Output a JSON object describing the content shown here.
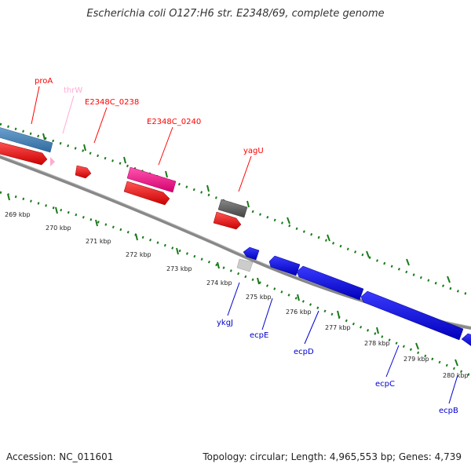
{
  "title": "Escherichia coli O127:H6 str. E2348/69, complete genome",
  "accession": "Accession: NC_011601",
  "summary": "Topology: circular; Length: 4,965,553 bp; Genes: 4,739",
  "kbp_labels": [
    "269 kbp",
    "270 kbp",
    "271 kbp",
    "272 kbp",
    "273 kbp",
    "274 kbp",
    "275 kbp",
    "276 kbp",
    "277 kbp",
    "278 kbp",
    "279 kbp",
    "280 kbp"
  ],
  "genes": {
    "proA": "proA",
    "thrW": "thrW",
    "e0238": "E2348C_0238",
    "e0240": "E2348C_0240",
    "yagU": "yagU",
    "ykgJ": "ykgJ",
    "ecpE": "ecpE",
    "ecpD": "ecpD",
    "ecpC": "ecpC",
    "ecpB": "ecpB"
  },
  "colors": {
    "forward_cds": "#ff0000",
    "reverse_cds": "#0000ff",
    "trna": "#ffaad4",
    "blue_feature": "#4a86b8",
    "magenta_feature": "#ff1a8c",
    "gray_feature": "#666666",
    "tick": "#1a7a1a",
    "backbone": "#888888"
  }
}
